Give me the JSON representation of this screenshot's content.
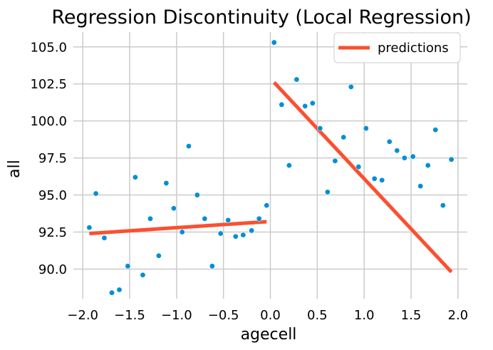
{
  "chart_data": {
    "type": "scatter",
    "title": "Regression Discontinuity (Local Regression)",
    "xlabel": "agecell",
    "ylabel": "all",
    "xlim": [
      -2.1,
      2.1
    ],
    "ylim": [
      88.0,
      106.0
    ],
    "grid": true,
    "legend_position": "top-right",
    "x_ticks": [
      -2.0,
      -1.5,
      -1.0,
      -0.5,
      0.0,
      0.5,
      1.0,
      1.5,
      2.0
    ],
    "x_tick_labels": [
      "−2.0",
      "−1.5",
      "−1.0",
      "−0.5",
      "0.0",
      "0.5",
      "1.0",
      "1.5",
      "2.0"
    ],
    "y_ticks": [
      90.0,
      92.5,
      95.0,
      97.5,
      100.0,
      102.5,
      105.0
    ],
    "y_tick_labels": [
      "90.0",
      "92.5",
      "95.0",
      "97.5",
      "100.0",
      "102.5",
      "105.0"
    ],
    "colors": {
      "points": "#008fd5",
      "predictions": "#fc4f30",
      "grid": "#cbcbcb",
      "background": "#ffffff"
    },
    "points": [
      {
        "x": -1.93,
        "y": 92.8
      },
      {
        "x": -1.86,
        "y": 95.1
      },
      {
        "x": -1.77,
        "y": 92.1
      },
      {
        "x": -1.69,
        "y": 88.4
      },
      {
        "x": -1.61,
        "y": 88.6
      },
      {
        "x": -1.52,
        "y": 90.2
      },
      {
        "x": -1.44,
        "y": 96.2
      },
      {
        "x": -1.36,
        "y": 89.6
      },
      {
        "x": -1.28,
        "y": 93.4
      },
      {
        "x": -1.19,
        "y": 90.9
      },
      {
        "x": -1.11,
        "y": 95.8
      },
      {
        "x": -1.03,
        "y": 94.1
      },
      {
        "x": -0.94,
        "y": 92.5
      },
      {
        "x": -0.87,
        "y": 98.3
      },
      {
        "x": -0.78,
        "y": 95.0
      },
      {
        "x": -0.7,
        "y": 93.4
      },
      {
        "x": -0.62,
        "y": 90.2
      },
      {
        "x": -0.53,
        "y": 92.4
      },
      {
        "x": -0.45,
        "y": 93.3
      },
      {
        "x": -0.37,
        "y": 92.2
      },
      {
        "x": -0.29,
        "y": 92.3
      },
      {
        "x": -0.2,
        "y": 92.6
      },
      {
        "x": -0.12,
        "y": 93.4
      },
      {
        "x": -0.04,
        "y": 94.3
      },
      {
        "x": 0.04,
        "y": 105.3
      },
      {
        "x": 0.12,
        "y": 101.1
      },
      {
        "x": 0.2,
        "y": 97.0
      },
      {
        "x": 0.28,
        "y": 102.8
      },
      {
        "x": 0.37,
        "y": 101.0
      },
      {
        "x": 0.45,
        "y": 101.2
      },
      {
        "x": 0.53,
        "y": 99.5
      },
      {
        "x": 0.61,
        "y": 95.2
      },
      {
        "x": 0.69,
        "y": 97.3
      },
      {
        "x": 0.78,
        "y": 98.9
      },
      {
        "x": 0.86,
        "y": 102.3
      },
      {
        "x": 0.94,
        "y": 96.9
      },
      {
        "x": 1.02,
        "y": 99.5
      },
      {
        "x": 1.11,
        "y": 96.1
      },
      {
        "x": 1.19,
        "y": 96.0
      },
      {
        "x": 1.27,
        "y": 98.6
      },
      {
        "x": 1.35,
        "y": 98.0
      },
      {
        "x": 1.43,
        "y": 97.5
      },
      {
        "x": 1.52,
        "y": 97.6
      },
      {
        "x": 1.6,
        "y": 95.6
      },
      {
        "x": 1.68,
        "y": 97.0
      },
      {
        "x": 1.76,
        "y": 99.4
      },
      {
        "x": 1.84,
        "y": 94.3
      },
      {
        "x": 1.93,
        "y": 97.4
      }
    ],
    "prediction_segments": [
      {
        "x": [
          -1.93,
          -0.04
        ],
        "y": [
          92.4,
          93.2
        ]
      },
      {
        "x": [
          0.04,
          1.93
        ],
        "y": [
          102.6,
          89.8
        ]
      }
    ],
    "legend": [
      {
        "label": "predictions",
        "color": "#fc4f30",
        "marker": "line"
      }
    ]
  }
}
